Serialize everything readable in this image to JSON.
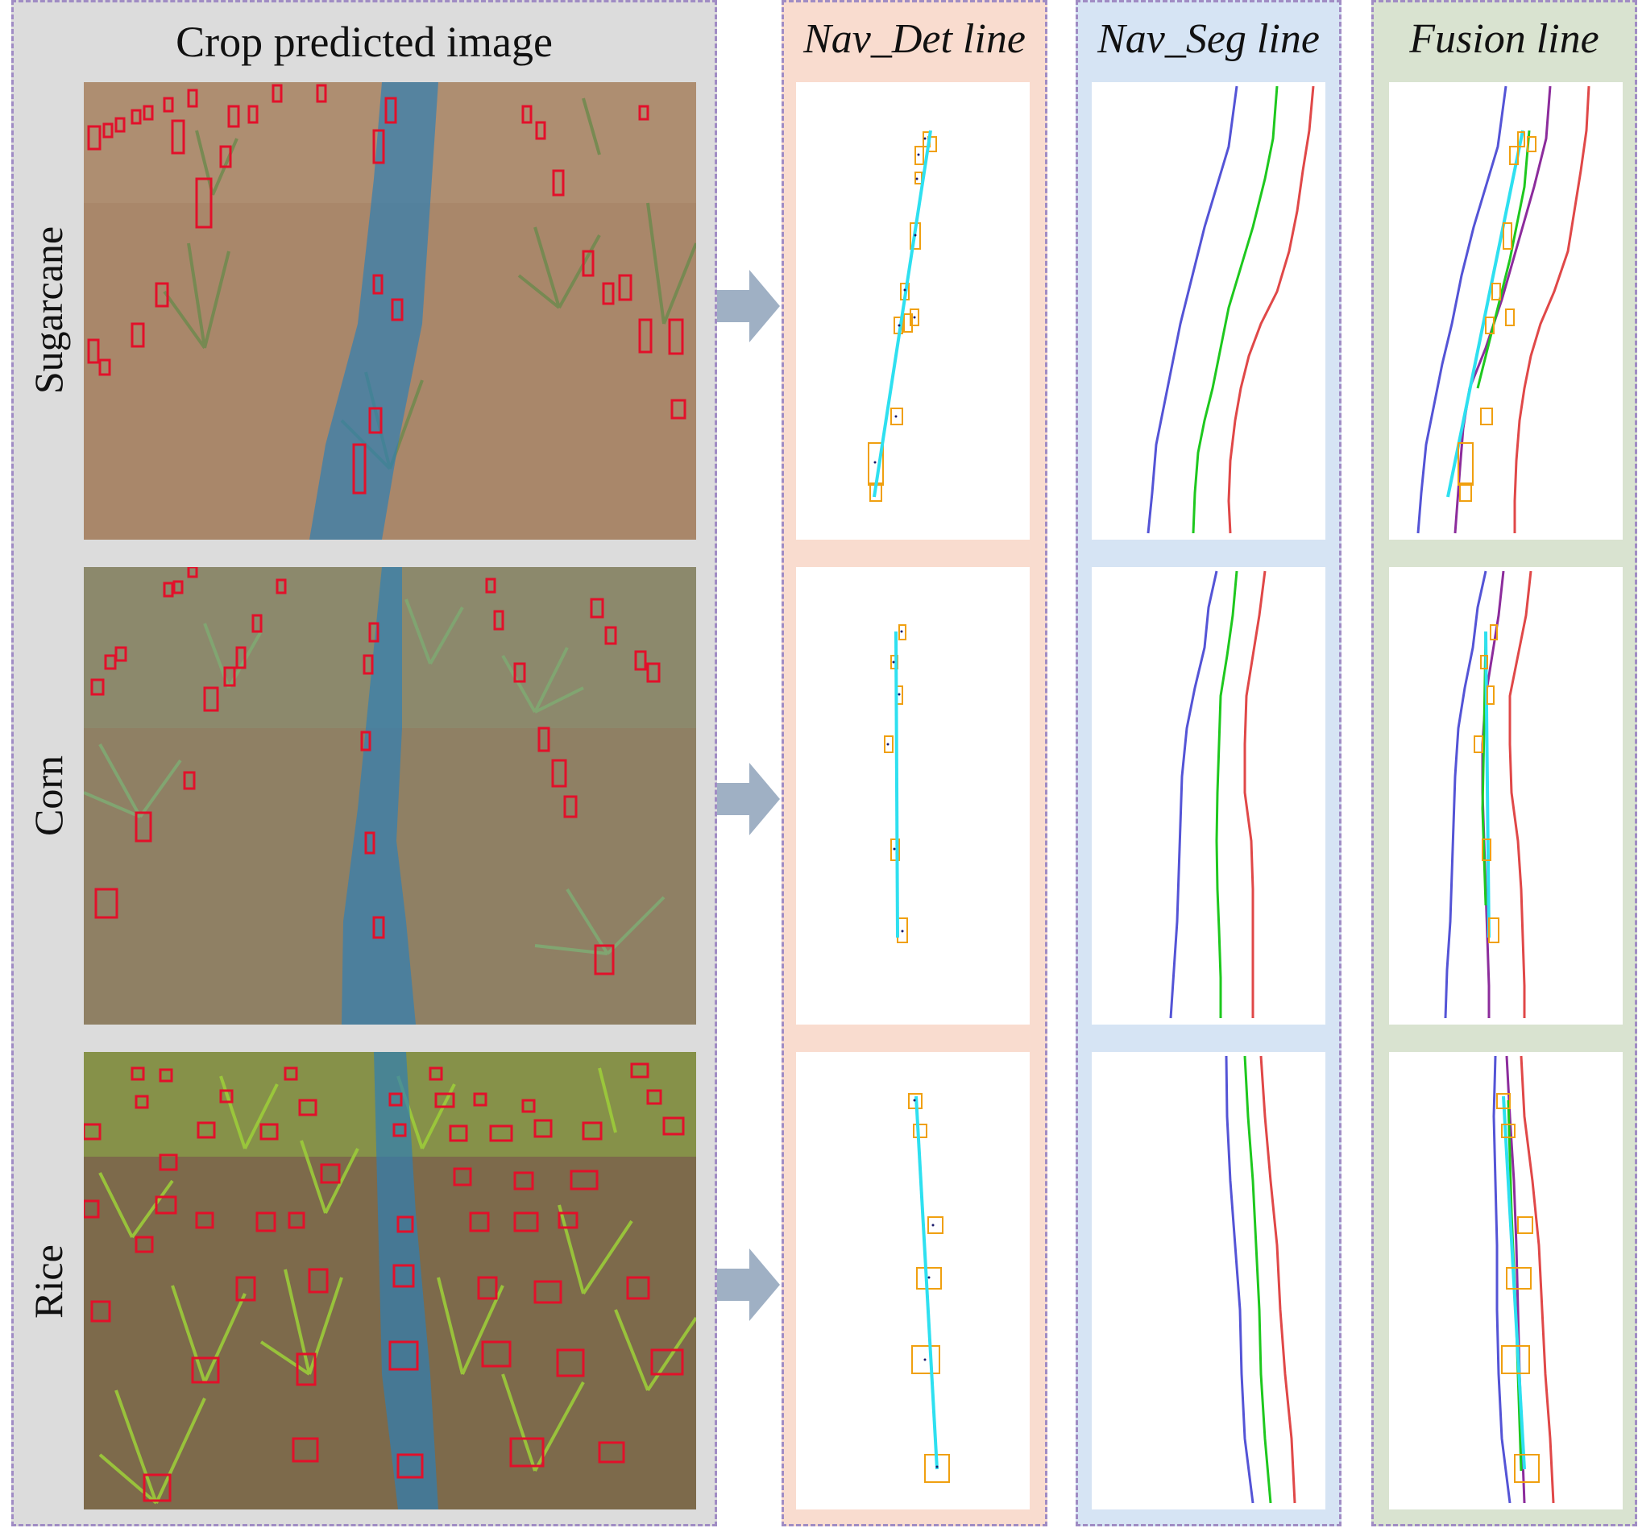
{
  "columns": {
    "crop": {
      "title": "Crop predicted image"
    },
    "det": {
      "title": "Nav_Det line"
    },
    "seg": {
      "title": "Nav_Seg line"
    },
    "fusion": {
      "title": "Fusion line"
    }
  },
  "rows": [
    {
      "label": "Sugarcane",
      "photo_ground": "#a9876a",
      "photo_plants": "#6f8a4d",
      "nav_band": "#2f7fb4"
    },
    {
      "label": "Corn",
      "photo_ground": "#8f8064",
      "photo_plants": "#7fa872",
      "nav_band": "#2f7fb4"
    },
    {
      "label": "Rice",
      "photo_ground": "#7d6a4b",
      "photo_plants": "#9ccc3a",
      "nav_band": "#2f7fb4"
    }
  ],
  "colors": {
    "crop_bg": "#dcdcdc",
    "det_bg": "#f9dccf",
    "seg_bg": "#d6e4f4",
    "fusion_bg": "#d9e3d0",
    "panel_border": "#a08cc4",
    "plant_box": "#e2102a",
    "det_box": "#f0a010",
    "det_line": "#2ee0f0",
    "seg_left": "#5454d6",
    "seg_center": "#1ec81e",
    "seg_right": "#e04848",
    "fusion_center": "#8c2c9c",
    "arrow": "#9fb0c4"
  }
}
